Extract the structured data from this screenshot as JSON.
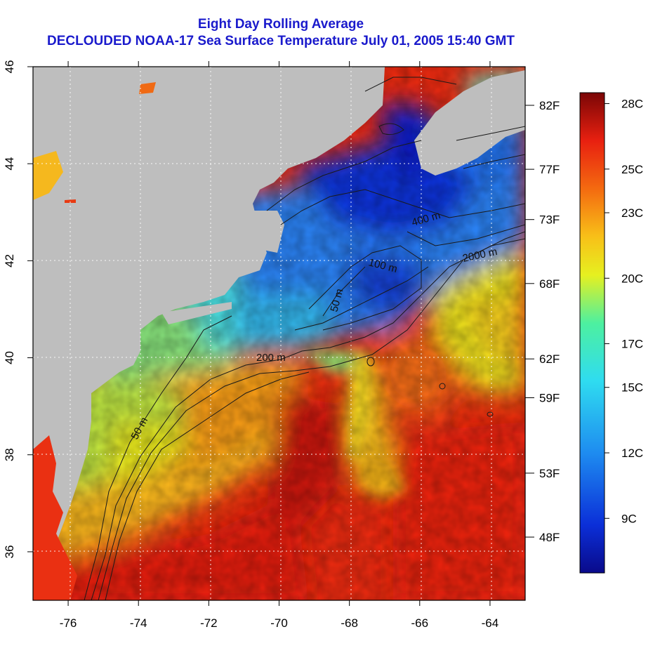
{
  "title_line1": "Eight Day Rolling Average",
  "title_line2": "DECLOUDED NOAA-17 Sea Surface Temperature July 01, 2005 15:40 GMT",
  "map": {
    "lon_range": [
      -77,
      -63
    ],
    "lat_range": [
      35,
      46
    ],
    "lon_ticks": [
      "-76",
      "-74",
      "-72",
      "-70",
      "-68",
      "-66",
      "-64"
    ],
    "lat_ticks": [
      "36",
      "38",
      "40",
      "42",
      "44",
      "46"
    ],
    "land_color": "#bebebe",
    "grid": "dotted",
    "contours": [
      {
        "label": "50 m"
      },
      {
        "label": "200 m"
      },
      {
        "label": "2000 m"
      },
      {
        "label": "400 m"
      },
      {
        "label": "100 m"
      },
      {
        "label": "50 m"
      }
    ]
  },
  "fahrenheit_ticks": [
    {
      "label": "82F",
      "celsius": 27.8
    },
    {
      "label": "77F",
      "celsius": 25.0
    },
    {
      "label": "73F",
      "celsius": 22.8
    },
    {
      "label": "68F",
      "celsius": 20.0
    },
    {
      "label": "62F",
      "celsius": 16.7
    },
    {
      "label": "59F",
      "celsius": 15.0
    },
    {
      "label": "53F",
      "celsius": 11.7
    },
    {
      "label": "48F",
      "celsius": 8.9
    }
  ],
  "colorbar": {
    "range_c": [
      6.5,
      28.5
    ],
    "labels": [
      {
        "label": "28C",
        "celsius": 28
      },
      {
        "label": "25C",
        "celsius": 25
      },
      {
        "label": "23C",
        "celsius": 23
      },
      {
        "label": "20C",
        "celsius": 20
      },
      {
        "label": "17C",
        "celsius": 17
      },
      {
        "label": "15C",
        "celsius": 15
      },
      {
        "label": "12C",
        "celsius": 12
      },
      {
        "label": "9C",
        "celsius": 9
      }
    ]
  }
}
